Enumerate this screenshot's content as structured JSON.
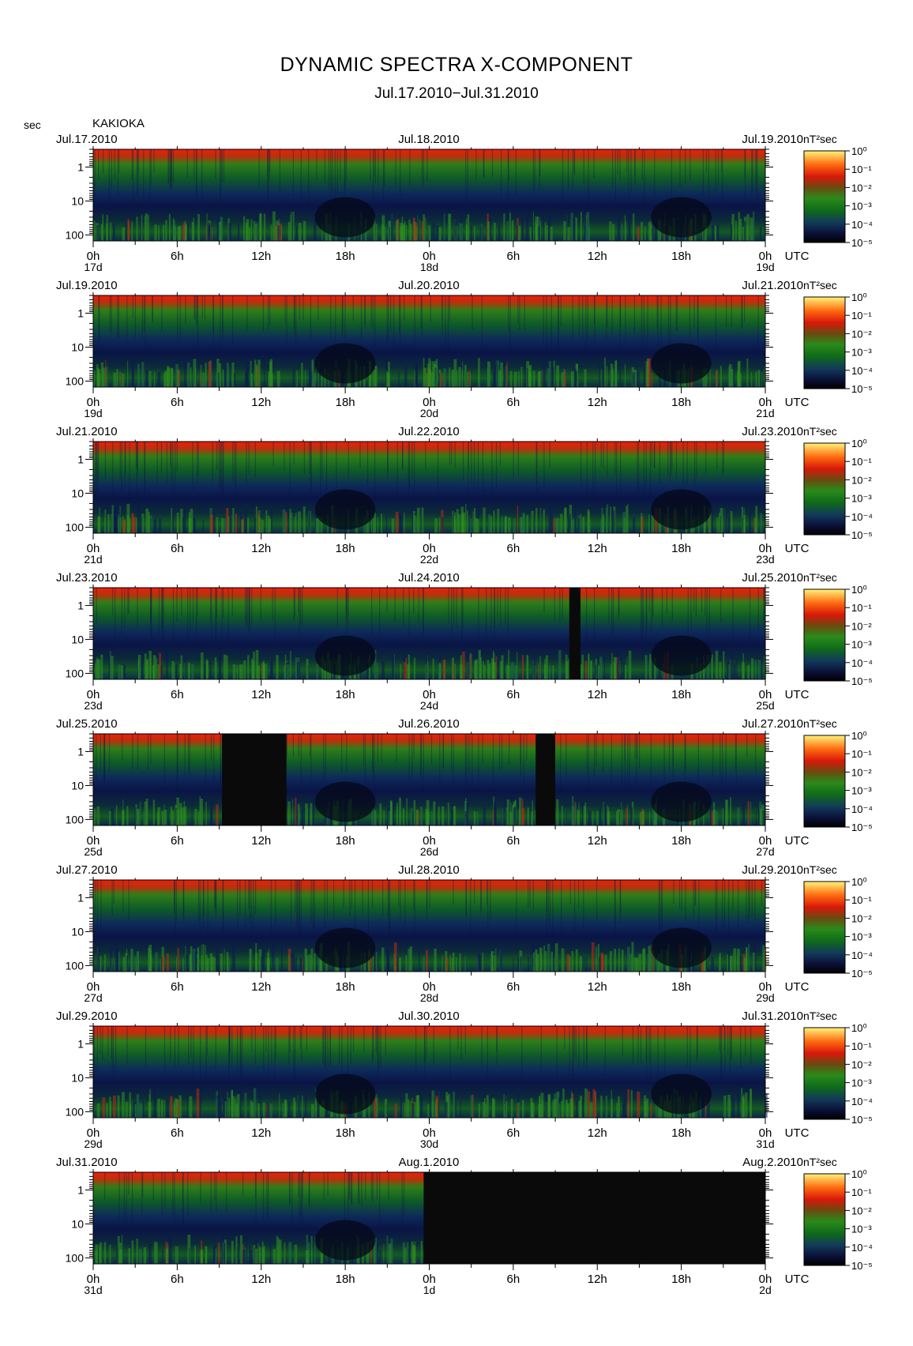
{
  "title": "DYNAMIC SPECTRA X-COMPONENT",
  "subtitle": "Jul.17.2010−Jul.31.2010",
  "station": "KAKIOKA",
  "y_unit": "sec",
  "x_unit": "UTC",
  "colorbar_unit": "nT²sec",
  "colorbar_labels": [
    "10⁰",
    "10⁻¹",
    "10⁻²",
    "10⁻³",
    "10⁻⁴",
    "10⁻⁵"
  ],
  "colors": {
    "background": "#000000",
    "low": "#0a0f3a",
    "mid": "#1f7a1f",
    "high": "#e31a0a",
    "peak": "#ffee55"
  },
  "chart_data": {
    "type": "heatmap",
    "y_axis": {
      "label": "sec",
      "scale": "log",
      "ticks": [
        1,
        10,
        100
      ],
      "range": [
        0.3,
        150
      ]
    },
    "x_ticks": [
      "0h",
      "6h",
      "12h",
      "18h",
      "0h",
      "6h",
      "12h",
      "18h",
      "0h"
    ],
    "colorbar": {
      "unit": "nT²sec",
      "range_log10": [
        -5,
        0
      ]
    },
    "panels": [
      {
        "dates": [
          "Jul.17.2010",
          "Jul.18.2010",
          "Jul.19.2010"
        ],
        "days": [
          "17d",
          "18d",
          "19d"
        ],
        "gaps": []
      },
      {
        "dates": [
          "Jul.19.2010",
          "Jul.20.2010",
          "Jul.21.2010"
        ],
        "days": [
          "19d",
          "20d",
          "21d"
        ],
        "gaps": []
      },
      {
        "dates": [
          "Jul.21.2010",
          "Jul.22.2010",
          "Jul.23.2010"
        ],
        "days": [
          "21d",
          "22d",
          "23d"
        ],
        "gaps": []
      },
      {
        "dates": [
          "Jul.23.2010",
          "Jul.24.2010",
          "Jul.25.2010"
        ],
        "days": [
          "23d",
          "24d",
          "25d"
        ],
        "gaps": [
          [
            34.0,
            34.8
          ]
        ]
      },
      {
        "dates": [
          "Jul.25.2010",
          "Jul.26.2010",
          "Jul.27.2010"
        ],
        "days": [
          "25d",
          "26d",
          "27d"
        ],
        "gaps": [
          [
            9.2,
            13.8
          ],
          [
            31.6,
            33.0
          ]
        ]
      },
      {
        "dates": [
          "Jul.27.2010",
          "Jul.28.2010",
          "Jul.29.2010"
        ],
        "days": [
          "27d",
          "28d",
          "29d"
        ],
        "gaps": []
      },
      {
        "dates": [
          "Jul.29.2010",
          "Jul.30.2010",
          "Jul.31.2010"
        ],
        "days": [
          "29d",
          "30d",
          "31d"
        ],
        "gaps": []
      },
      {
        "dates": [
          "Jul.31.2010",
          "Aug.1.2010",
          "Aug.2.2010"
        ],
        "days": [
          "31d",
          "1d",
          "2d"
        ],
        "gaps": [
          [
            23.6,
            48.0
          ]
        ]
      }
    ]
  }
}
